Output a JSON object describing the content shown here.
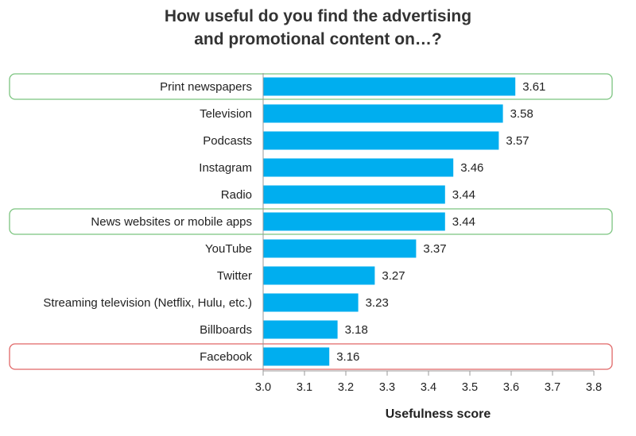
{
  "chart_data": {
    "type": "bar",
    "orientation": "horizontal",
    "title": [
      "How useful do you find the advertising",
      "and promotional content on…?"
    ],
    "xlabel": "Usefulness score",
    "ylabel": "",
    "xlim": [
      3.0,
      3.8
    ],
    "ticks": [
      "3.0",
      "3.1",
      "3.2",
      "3.3",
      "3.4",
      "3.5",
      "3.6",
      "3.7",
      "3.8"
    ],
    "grid": false,
    "categories": [
      "Print newspapers",
      "Television",
      "Podcasts",
      "Instagram",
      "Radio",
      "News websites or mobile apps",
      "YouTube",
      "Twitter",
      "Streaming television (Netflix, Hulu, etc.)",
      "Billboards",
      "Facebook"
    ],
    "values": [
      3.61,
      3.58,
      3.57,
      3.46,
      3.44,
      3.44,
      3.37,
      3.27,
      3.23,
      3.18,
      3.16
    ],
    "value_labels": [
      "3.61",
      "3.58",
      "3.57",
      "3.46",
      "3.44",
      "3.44",
      "3.37",
      "3.27",
      "3.23",
      "3.18",
      "3.16"
    ],
    "highlights": [
      {
        "category": "Print newspapers",
        "color": "#7bc47f"
      },
      {
        "category": "News websites or mobile apps",
        "color": "#7bc47f"
      },
      {
        "category": "Facebook",
        "color": "#e06666"
      }
    ],
    "bar_color": "#00aeef",
    "axis_color": "#999999"
  }
}
